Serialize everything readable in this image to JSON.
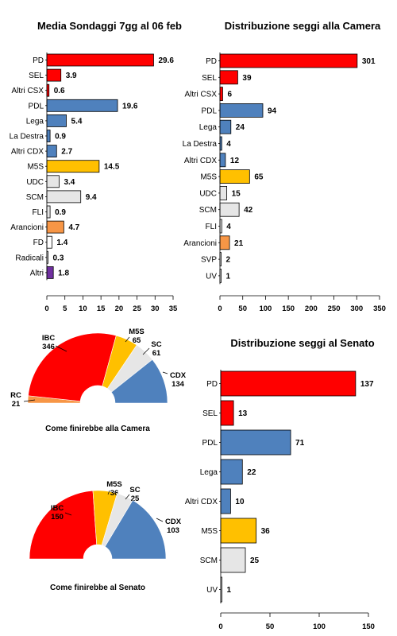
{
  "colors": {
    "red": "#ff0000",
    "blue": "#4f81bd",
    "yellow": "#ffc000",
    "lightgray": "#e6e6e6",
    "orange": "#f79646",
    "purple": "#7030a0",
    "white": "#ffffff"
  },
  "chart_data": [
    {
      "id": "sondaggi",
      "type": "bar",
      "orientation": "horizontal",
      "title": "Media Sondaggi 7gg al 06 feb",
      "categories": [
        "PD",
        "SEL",
        "Altri CSX",
        "PDL",
        "Lega",
        "La Destra",
        "Altri CDX",
        "M5S",
        "UDC",
        "SCM",
        "FLI",
        "Arancioni",
        "FD",
        "Radicali",
        "Altri"
      ],
      "values": [
        29.6,
        3.9,
        0.6,
        19.6,
        5.4,
        0.9,
        2.7,
        14.5,
        3.4,
        9.4,
        0.9,
        4.7,
        1.4,
        0.3,
        1.8
      ],
      "value_labels": [
        "29.6",
        "3.9",
        "0.6",
        "19.6",
        "5.4",
        "0.9",
        "2.7",
        "14.5",
        "3.4",
        "9.4",
        "0.9",
        "4.7",
        "1.4",
        "0.3",
        "1.8"
      ],
      "colors": [
        "red",
        "red",
        "red",
        "blue",
        "blue",
        "blue",
        "blue",
        "yellow",
        "lightgray",
        "lightgray",
        "lightgray",
        "orange",
        "white",
        "white",
        "purple"
      ],
      "xlim": [
        0,
        35
      ],
      "xticks": [
        "0",
        "5",
        "10",
        "15",
        "20",
        "25",
        "30",
        "35"
      ]
    },
    {
      "id": "camera",
      "type": "bar",
      "orientation": "horizontal",
      "title": "Distribuzione seggi alla Camera",
      "categories": [
        "PD",
        "SEL",
        "Altri CSX",
        "PDL",
        "Lega",
        "La Destra",
        "Altri CDX",
        "M5S",
        "UDC",
        "SCM",
        "FLI",
        "Arancioni",
        "SVP",
        "UV"
      ],
      "values": [
        301,
        39,
        6,
        94,
        24,
        4,
        12,
        65,
        15,
        42,
        4,
        21,
        2,
        1
      ],
      "value_labels": [
        "301",
        "39",
        "6",
        "94",
        "24",
        "4",
        "12",
        "65",
        "15",
        "42",
        "4",
        "21",
        "2",
        "1"
      ],
      "colors": [
        "red",
        "red",
        "red",
        "blue",
        "blue",
        "blue",
        "blue",
        "yellow",
        "lightgray",
        "lightgray",
        "lightgray",
        "orange",
        "white",
        "white"
      ],
      "xlim": [
        0,
        350
      ],
      "xticks": [
        "0",
        "50",
        "100",
        "150",
        "200",
        "250",
        "300",
        "350"
      ]
    },
    {
      "id": "senato",
      "type": "bar",
      "orientation": "horizontal",
      "title": "Distribuzione seggi al Senato",
      "categories": [
        "PD",
        "SEL",
        "PDL",
        "Lega",
        "Altri CDX",
        "M5S",
        "SCM",
        "UV"
      ],
      "values": [
        137,
        13,
        71,
        22,
        10,
        36,
        25,
        1
      ],
      "value_labels": [
        "137",
        "13",
        "71",
        "22",
        "10",
        "36",
        "25",
        "1"
      ],
      "colors": [
        "red",
        "red",
        "blue",
        "blue",
        "blue",
        "yellow",
        "lightgray",
        "white"
      ],
      "xlim": [
        0,
        150
      ],
      "xticks": [
        "0",
        "50",
        "100",
        "150"
      ]
    },
    {
      "id": "pie_camera",
      "type": "pie",
      "style": "semicircle",
      "caption": "Come finirebbe alla Camera",
      "slices": [
        {
          "name": "RC",
          "value": 21,
          "value_label": "21",
          "color": "orange"
        },
        {
          "name": "IBC",
          "value": 346,
          "value_label": "346",
          "color": "red"
        },
        {
          "name": "M5S",
          "value": 65,
          "value_label": "65",
          "color": "yellow"
        },
        {
          "name": "SC",
          "value": 61,
          "value_label": "61",
          "color": "lightgray"
        },
        {
          "name": "CDX",
          "value": 134,
          "value_label": "134",
          "color": "blue"
        }
      ]
    },
    {
      "id": "pie_senato",
      "type": "pie",
      "style": "semicircle",
      "caption": "Come finirebbe al Senato",
      "slices": [
        {
          "name": "IBC",
          "value": 150,
          "value_label": "150",
          "color": "red"
        },
        {
          "name": "M5S",
          "value": 36,
          "value_label": "36",
          "color": "yellow"
        },
        {
          "name": "SC",
          "value": 25,
          "value_label": "25",
          "color": "lightgray"
        },
        {
          "name": "CDX",
          "value": 103,
          "value_label": "103",
          "color": "blue"
        }
      ]
    }
  ]
}
